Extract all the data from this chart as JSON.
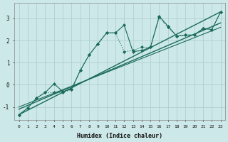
{
  "xlabel": "Humidex (Indice chaleur)",
  "bg_color": "#cde8e8",
  "grid_color": "#b0d0d0",
  "line_color": "#1a6b5a",
  "xlim": [
    -0.5,
    23.5
  ],
  "ylim": [
    -1.6,
    3.7
  ],
  "yticks": [
    -1,
    0,
    1,
    2,
    3
  ],
  "xticks": [
    0,
    1,
    2,
    3,
    4,
    5,
    6,
    7,
    8,
    9,
    10,
    11,
    12,
    13,
    14,
    15,
    16,
    17,
    18,
    19,
    20,
    21,
    22,
    23
  ],
  "series1_y": [
    -1.35,
    -1.05,
    -0.6,
    -0.35,
    0.05,
    -0.3,
    -0.2,
    0.65,
    1.35,
    1.85,
    2.35,
    2.35,
    2.7,
    1.5,
    1.55,
    1.7,
    3.1,
    2.65,
    2.2,
    2.25,
    2.25,
    2.55,
    2.5,
    3.3
  ],
  "series2_y": [
    -1.35,
    -1.05,
    -0.6,
    -0.35,
    -0.35,
    -0.35,
    -0.2,
    0.65,
    1.35,
    1.85,
    2.35,
    2.35,
    1.5,
    1.55,
    1.7,
    1.7,
    3.05,
    2.6,
    2.2,
    2.25,
    2.25,
    2.55,
    2.5,
    3.3
  ],
  "line1_x": [
    0,
    23
  ],
  "line1_y": [
    -1.35,
    3.3
  ],
  "line2_x": [
    0,
    23
  ],
  "line2_y": [
    -1.1,
    2.8
  ],
  "line3_x": [
    0,
    23
  ],
  "line3_y": [
    -1.0,
    2.6
  ]
}
